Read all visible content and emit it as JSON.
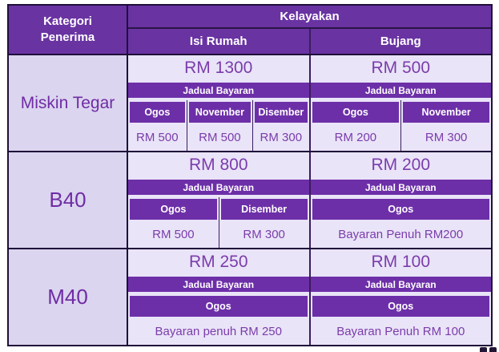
{
  "header": {
    "category": "Kategori Penerima",
    "eligibility": "Kelayakan",
    "household": "Isi Rumah",
    "single": "Bujang"
  },
  "sections": [
    {
      "category": "Miskin Tegar",
      "isi_rumah": {
        "amount": "RM 1300",
        "schedule_label": "Jadual Bayaran",
        "months": [
          "Ogos",
          "November",
          "Disember"
        ],
        "values": [
          "RM 500",
          "RM 500",
          "RM 300"
        ]
      },
      "bujang": {
        "amount": "RM 500",
        "schedule_label": "Jadual Bayaran",
        "months": [
          "Ogos",
          "November"
        ],
        "values": [
          "RM 200",
          "RM 300"
        ]
      }
    },
    {
      "category": "B40",
      "isi_rumah": {
        "amount": "RM 800",
        "schedule_label": "Jadual Bayaran",
        "months": [
          "Ogos",
          "Disember"
        ],
        "values": [
          "RM 500",
          "RM 300"
        ]
      },
      "bujang": {
        "amount": "RM 200",
        "schedule_label": "Jadual Bayaran",
        "months": [
          "Ogos"
        ],
        "values": [
          "Bayaran Penuh RM200"
        ]
      }
    },
    {
      "category": "M40",
      "isi_rumah": {
        "amount": "RM 250",
        "schedule_label": "Jadual Bayaran",
        "months": [
          "Ogos"
        ],
        "values": [
          "Bayaran penuh RM 250"
        ]
      },
      "bujang": {
        "amount": "RM 100",
        "schedule_label": "Jadual Bayaran",
        "months": [
          "Ogos"
        ],
        "values": [
          "Bayaran Penuh RM 100"
        ]
      }
    }
  ],
  "colors": {
    "header_purple": "#6933a2",
    "band_purple": "#6d2fa8",
    "light_cell": "#e9e4f8",
    "category_cell": "#dbd5ef",
    "dark_border": "#1f0f38",
    "inner_border": "#3a1d5e",
    "text_purple": "#7b3cab",
    "category_text": "#6f2ca4"
  }
}
